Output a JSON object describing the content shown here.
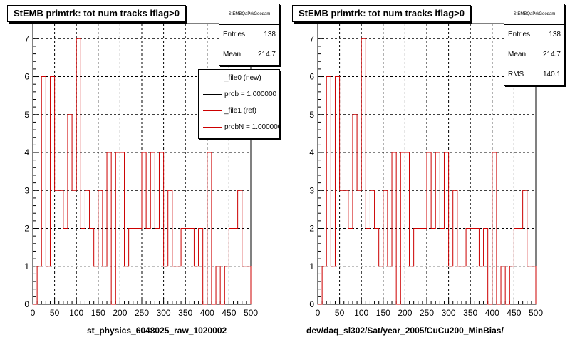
{
  "colors": {
    "ref_line": "#cc0000",
    "new_line": "#000000",
    "grid": "#000000"
  },
  "pads": [
    {
      "title": "StEMB primtrk: tot num tracks iflag>0",
      "stats": {
        "name": "StEMBQaPrkGoodam",
        "rows": [
          {
            "label": "Entries",
            "value": "138"
          },
          {
            "label": "Mean",
            "value": "214.7"
          }
        ]
      },
      "legend": {
        "entries": [
          {
            "label": "_file0 (new)",
            "color": "#000000"
          },
          {
            "label": "prob = 1.000000",
            "color": "#000000"
          },
          {
            "label": "_file1 (ref)",
            "color": "#cc0000"
          },
          {
            "label": "probN = 1.000000",
            "color": "#cc0000"
          }
        ]
      },
      "xlabel": "st_physics_6048025_raw_1020002"
    },
    {
      "title": "StEMB primtrk: tot num tracks iflag>0",
      "stats": {
        "name": "StEMBQaPrkGoodam",
        "rows": [
          {
            "label": "Entries",
            "value": "138"
          },
          {
            "label": "Mean",
            "value": "214.7"
          },
          {
            "label": "RMS",
            "value": "140.1"
          }
        ]
      },
      "xlabel": "dev/daq_sl302/Sat/year_2005/CuCu200_MinBias/"
    }
  ],
  "footer_text": "...",
  "chart_data": [
    {
      "type": "line",
      "title": "StEMB primtrk: tot num tracks iflag>0",
      "xlabel": "st_physics_6048025_raw_1020002",
      "xlim": [
        0,
        500
      ],
      "ylim": [
        0,
        7.4
      ],
      "xticks": [
        0,
        50,
        100,
        150,
        200,
        250,
        300,
        350,
        400,
        450,
        500
      ],
      "yticks": [
        0,
        1,
        2,
        3,
        4,
        5,
        6,
        7
      ],
      "grid": true,
      "legend_position": "top-right",
      "bin_width": 10,
      "x": [
        0,
        10,
        20,
        30,
        40,
        50,
        60,
        70,
        80,
        90,
        100,
        110,
        120,
        130,
        140,
        150,
        160,
        170,
        180,
        190,
        200,
        210,
        220,
        230,
        240,
        250,
        260,
        270,
        280,
        290,
        300,
        310,
        320,
        330,
        340,
        350,
        360,
        370,
        380,
        390,
        400,
        410,
        420,
        430,
        440,
        450,
        460,
        470,
        480,
        490
      ],
      "series": [
        {
          "name": "_file1 (ref)",
          "values": [
            0,
            1,
            6,
            1,
            6,
            3,
            3,
            2,
            5,
            3,
            7,
            2,
            3,
            2,
            1,
            3,
            1,
            4,
            0,
            4,
            4,
            1,
            2,
            2,
            2,
            4,
            2,
            4,
            2,
            4,
            1,
            3,
            1,
            1,
            2,
            2,
            2,
            1,
            2,
            0,
            4,
            0,
            1,
            0,
            1,
            2,
            2,
            3,
            1,
            1
          ]
        }
      ]
    },
    {
      "type": "line",
      "title": "StEMB primtrk: tot num tracks iflag>0",
      "xlabel": "dev/daq_sl302/Sat/year_2005/CuCu200_MinBias/",
      "xlim": [
        0,
        500
      ],
      "ylim": [
        0,
        7.4
      ],
      "xticks": [
        0,
        50,
        100,
        150,
        200,
        250,
        300,
        350,
        400,
        450,
        500
      ],
      "yticks": [
        0,
        1,
        2,
        3,
        4,
        5,
        6,
        7
      ],
      "grid": true,
      "bin_width": 10,
      "x": [
        0,
        10,
        20,
        30,
        40,
        50,
        60,
        70,
        80,
        90,
        100,
        110,
        120,
        130,
        140,
        150,
        160,
        170,
        180,
        190,
        200,
        210,
        220,
        230,
        240,
        250,
        260,
        270,
        280,
        290,
        300,
        310,
        320,
        330,
        340,
        350,
        360,
        370,
        380,
        390,
        400,
        410,
        420,
        430,
        440,
        450,
        460,
        470,
        480,
        490
      ],
      "series": [
        {
          "name": "_file1 (ref)",
          "values": [
            0,
            1,
            6,
            1,
            6,
            3,
            3,
            2,
            5,
            3,
            7,
            2,
            3,
            2,
            1,
            3,
            1,
            4,
            0,
            4,
            4,
            1,
            2,
            2,
            2,
            4,
            2,
            4,
            2,
            4,
            1,
            3,
            1,
            1,
            2,
            2,
            2,
            1,
            2,
            0,
            4,
            0,
            1,
            0,
            1,
            2,
            2,
            3,
            1,
            1
          ]
        }
      ]
    }
  ]
}
